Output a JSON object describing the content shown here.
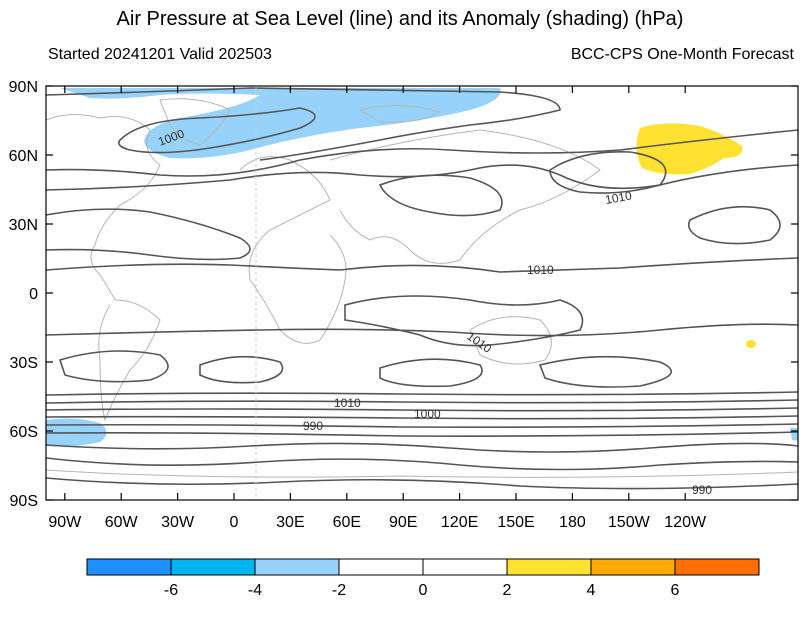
{
  "title": "Air Pressure at Sea Level (line) and its Anomaly (shading) (hPa)",
  "subtitle_left": "Started 20241201  Valid 202503",
  "subtitle_right": "BCC-CPS One-Month Forecast",
  "lat_labels": [
    "90N",
    "60N",
    "30N",
    "0",
    "30S",
    "60S",
    "90S"
  ],
  "lon_labels": [
    "90W",
    "60W",
    "30W",
    "0",
    "30E",
    "60E",
    "90E",
    "120E",
    "150E",
    "180",
    "150W",
    "120W"
  ],
  "contour_labels": [
    "1000",
    "1010",
    "1010",
    "1010",
    "1010",
    "1000",
    "990",
    "990"
  ],
  "colorbar": {
    "colors": [
      "#1e90ff",
      "#00b4f0",
      "#96d2fa",
      "#ffffff",
      "#ffffff",
      "#ffe132",
      "#ffaa00",
      "#ff6e00"
    ],
    "labels": [
      "-6",
      "-4",
      "-2",
      "0",
      "2",
      "4",
      "6"
    ]
  },
  "anomaly_colors": {
    "negative_light": "#96d2fa",
    "positive_light": "#ffe132"
  }
}
